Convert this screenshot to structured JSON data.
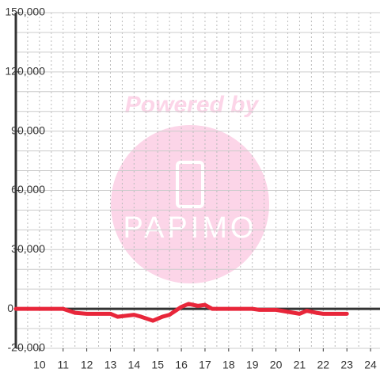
{
  "chart_data": {
    "type": "line",
    "watermark": {
      "title": "Powered by",
      "logo": "PAPIMO"
    },
    "x": [
      9,
      10,
      11,
      11.5,
      12,
      13,
      13.3,
      14,
      14.3,
      14.8,
      15.2,
      15.5,
      16,
      16.3,
      16.7,
      17,
      17.3,
      18,
      19,
      19.3,
      20,
      20.5,
      21,
      21.3,
      21.7,
      22,
      23
    ],
    "series": [
      {
        "color": "#e8263a",
        "values": [
          0,
          0,
          0,
          -2000,
          -2500,
          -2500,
          -4000,
          -3000,
          -4000,
          -6000,
          -4000,
          -3000,
          1000,
          2500,
          1500,
          2000,
          0,
          0,
          0,
          -500,
          -500,
          -1500,
          -2500,
          -1000,
          -2000,
          -2500,
          -2500
        ]
      }
    ],
    "xlim": [
      9,
      24.4
    ],
    "xticks": [
      10,
      11,
      12,
      13,
      14,
      15,
      16,
      17,
      18,
      19,
      20,
      21,
      22,
      23,
      24
    ],
    "xgrid": [
      9.5,
      10,
      10.5,
      11,
      11.5,
      12,
      12.5,
      13,
      13.5,
      14,
      14.5,
      15,
      15.5,
      16,
      16.5,
      17,
      17.5,
      18,
      18.5,
      19,
      19.5,
      20,
      20.5,
      21,
      21.5,
      22,
      22.5,
      23,
      23.5,
      24
    ],
    "ylim": [
      -20000,
      150000
    ],
    "yticks": [
      {
        "value": -20000,
        "label": "-20,000"
      },
      0,
      {
        "value": 30000,
        "label": "30,000"
      },
      {
        "value": 60000,
        "label": "60,000"
      },
      {
        "value": 90000,
        "label": "90,000"
      },
      {
        "value": 120000,
        "label": "120,000"
      },
      {
        "value": 150000,
        "label": "150,000"
      }
    ],
    "ygrid": [
      -20000,
      -10000,
      10000,
      20000,
      30000,
      40000,
      50000,
      60000,
      70000,
      80000,
      90000,
      100000,
      110000,
      120000,
      130000,
      140000,
      150000
    ],
    "grid": true
  }
}
